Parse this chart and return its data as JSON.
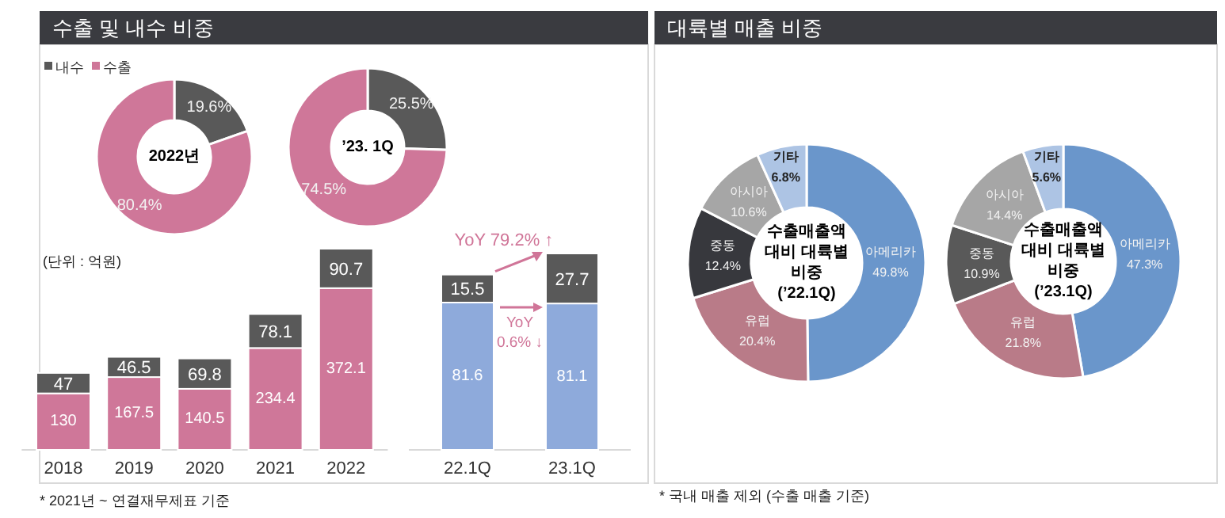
{
  "chart_data": [
    {
      "type": "donut",
      "title": "수출 및 내수 비중",
      "legend": "top left",
      "categories": [
        "내수",
        "수출"
      ],
      "values": [
        19.6,
        80.4
      ],
      "colors": [
        "#595959",
        "#cf7799"
      ],
      "value_labels": [
        "19.6%",
        "80.4%"
      ],
      "annotations": [
        "2022년"
      ]
    },
    {
      "type": "donut",
      "categories": [
        null,
        null
      ],
      "values": [
        25.5,
        74.5
      ],
      "colors": [
        "#595959",
        "#cf7799"
      ],
      "value_labels": [
        "25.5%",
        "74.5%"
      ],
      "annotations": [
        "’23. 1Q"
      ]
    },
    {
      "type": "bar",
      "stacked": true,
      "categories": [
        "2018",
        "2019",
        "2020",
        "2021",
        "2022"
      ],
      "data_labels": true,
      "series": [
        {
          "color": "#cf7799",
          "values": [
            130,
            167.5,
            140.5,
            234.4,
            372.1
          ]
        },
        {
          "color": "#595959",
          "values": [
            47,
            46.5,
            69.8,
            78.1,
            90.7
          ]
        }
      ],
      "annotations": [
        "(단위 : 억원)",
        "* 2021년 ~ 연결재무제표 기준"
      ]
    },
    {
      "type": "bar",
      "stacked": true,
      "categories": [
        "22.1Q",
        "23.1Q"
      ],
      "data_labels": true,
      "series": [
        {
          "color": "#8eaadb",
          "values": [
            81.6,
            81.1
          ]
        },
        {
          "color": "#595959",
          "values": [
            15.5,
            27.7
          ]
        }
      ],
      "annotations": [
        "YoY 79.2% ↑",
        "YoY\n0.6% ↓"
      ]
    },
    {
      "type": "donut",
      "title": "대륙별 매출 비중",
      "categories": [
        "아메리카",
        "유럽",
        "중동",
        "아시아",
        "기타"
      ],
      "values": [
        49.8,
        20.4,
        12.4,
        10.6,
        6.8
      ],
      "colors": [
        "#6a96cb",
        "#b97b88",
        "#37383d",
        "#a6a6a6",
        "#adc4e4"
      ],
      "value_labels": [
        "49.8%",
        "20.4%",
        "12.4%",
        "10.6%",
        "6.8%"
      ],
      "annotations": [
        "수출매출액\n대비 대륙별\n비중\n(’22.1Q)"
      ]
    },
    {
      "type": "donut",
      "categories": [
        "아메리카",
        "유럽",
        "중동",
        "아시아",
        "기타"
      ],
      "values": [
        47.3,
        21.8,
        10.9,
        14.4,
        5.6
      ],
      "colors": [
        "#6a96cb",
        "#b97b88",
        "#595959",
        "#a6a6a6",
        "#adc4e4"
      ],
      "value_labels": [
        "47.3%",
        "21.8%",
        "10.9%",
        "14.4%",
        "5.6%"
      ],
      "annotations": [
        "수출매출액\n대비 대륙별\n비중\n(’23.1Q)",
        "* 국내 매출 제외 (수출 매출 기준)"
      ]
    }
  ]
}
